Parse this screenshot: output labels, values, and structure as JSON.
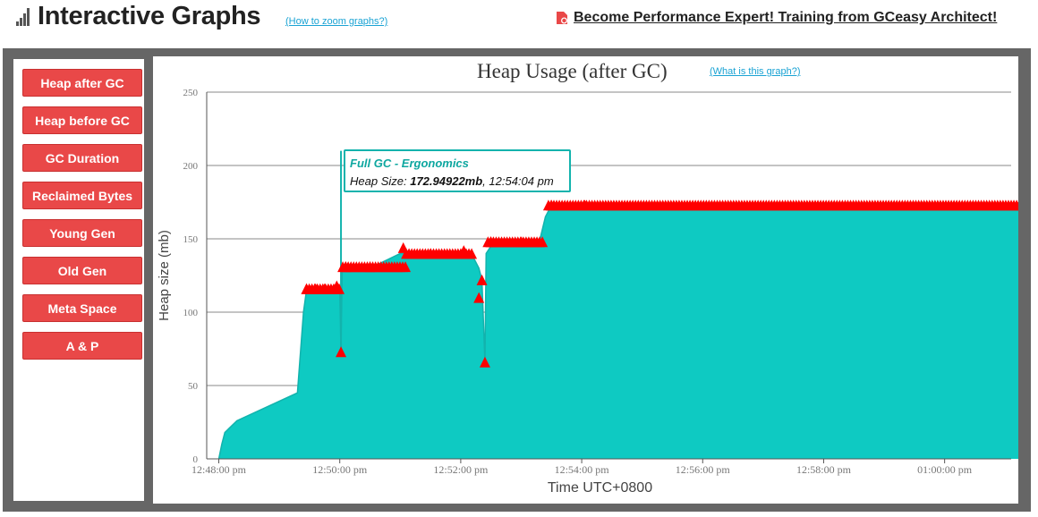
{
  "header": {
    "title": "Interactive Graphs",
    "zoom_link": "(How to zoom graphs?)",
    "promo_link": "Become Performance Expert! Training from GCeasy Architect!"
  },
  "sidebar": {
    "buttons": [
      {
        "label": "Heap after GC"
      },
      {
        "label": "Heap before GC"
      },
      {
        "label": "GC Duration"
      },
      {
        "label": "Reclaimed Bytes"
      },
      {
        "label": "Young Gen"
      },
      {
        "label": "Old Gen"
      },
      {
        "label": "Meta Space"
      },
      {
        "label": "A & P"
      }
    ]
  },
  "graph": {
    "what_link": "(What is this graph?)"
  },
  "tooltip": {
    "title": "Full GC - Ergonomics",
    "label": "Heap Size:",
    "value": "172.94922mb",
    "time": ", 12:54:04 pm"
  },
  "colors": {
    "area": "#0ecac2",
    "area_line": "#12b3ad",
    "marker": "#ff0000",
    "button": "#e94848"
  },
  "chart_data": {
    "type": "area",
    "title": "Heap Usage (after GC)",
    "xlabel": "Time UTC+0800",
    "ylabel": "Heap size (mb)",
    "ylim": [
      0,
      250
    ],
    "yticks": [
      0,
      50,
      100,
      150,
      200,
      250
    ],
    "xlim": [
      -1,
      22.5
    ],
    "xticks": [
      {
        "t": 0,
        "label": "12:48:00 pm"
      },
      {
        "t": 2,
        "label": "12:50:00 pm"
      },
      {
        "t": 4,
        "label": "12:52:00 pm"
      },
      {
        "t": 6,
        "label": "12:54:00 pm"
      },
      {
        "t": 8,
        "label": "12:56:00 pm"
      },
      {
        "t": 10,
        "label": "12:58:00 pm"
      },
      {
        "t": 12,
        "label": "01:00:00 pm"
      }
    ],
    "grid": true,
    "series": [
      {
        "points": [
          [
            0.0,
            0
          ],
          [
            0.05,
            10
          ],
          [
            0.1,
            18
          ],
          [
            0.2,
            22
          ],
          [
            0.3,
            26
          ],
          [
            1.3,
            45
          ],
          [
            1.4,
            100
          ],
          [
            1.45,
            115
          ],
          [
            1.9,
            115
          ],
          [
            1.95,
            118
          ],
          [
            2.0,
            115
          ],
          [
            2.02,
            73
          ],
          [
            2.04,
            130
          ],
          [
            2.07,
            131
          ],
          [
            2.5,
            131
          ],
          [
            2.6,
            132
          ],
          [
            3.0,
            140
          ],
          [
            3.5,
            140
          ],
          [
            4.0,
            140
          ],
          [
            4.2,
            138
          ],
          [
            4.3,
            130
          ],
          [
            4.35,
            122
          ],
          [
            4.4,
            66
          ],
          [
            4.42,
            140
          ],
          [
            4.5,
            145
          ],
          [
            4.55,
            148
          ],
          [
            5.3,
            148
          ],
          [
            5.4,
            165
          ],
          [
            5.5,
            172.9
          ],
          [
            6.0,
            172.9
          ],
          [
            14.0,
            172.9
          ]
        ]
      }
    ],
    "markers": [
      {
        "t": 1.45,
        "v": 116
      },
      {
        "t": 1.6,
        "v": 116
      },
      {
        "t": 1.75,
        "v": 116
      },
      {
        "t": 1.95,
        "v": 118
      },
      {
        "t": 2.02,
        "v": 73
      },
      {
        "t": 2.1,
        "v": 131
      },
      {
        "t": 2.5,
        "v": 131
      },
      {
        "t": 3.05,
        "v": 144
      },
      {
        "t": 3.5,
        "v": 140
      },
      {
        "t": 4.05,
        "v": 142
      },
      {
        "t": 4.3,
        "v": 110
      },
      {
        "t": 4.35,
        "v": 122
      },
      {
        "t": 4.4,
        "v": 66
      },
      {
        "t": 4.5,
        "v": 148
      },
      {
        "t": 5.0,
        "v": 148
      },
      {
        "t": 5.5,
        "v": 173
      },
      {
        "t": 6.05,
        "v": 173
      }
    ],
    "band_segments": [
      {
        "t0": 1.45,
        "t1": 2.0,
        "v": 116
      },
      {
        "t0": 2.05,
        "t1": 3.1,
        "v": 131
      },
      {
        "t0": 3.1,
        "t1": 4.2,
        "v": 140
      },
      {
        "t0": 4.45,
        "t1": 5.35,
        "v": 148
      },
      {
        "t0": 5.45,
        "t1": 14.0,
        "v": 173
      }
    ]
  }
}
